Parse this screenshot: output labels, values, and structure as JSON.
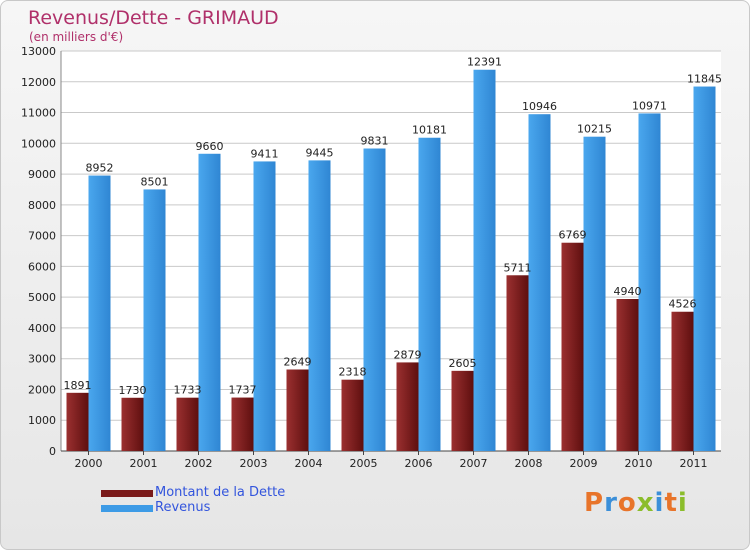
{
  "title": "Revenus/Dette - GRIMAUD",
  "subtitle": "(en milliers d'€)",
  "logo_text": "Proxiti",
  "chart_data": {
    "type": "bar",
    "categories": [
      "2000",
      "2001",
      "2002",
      "2003",
      "2004",
      "2005",
      "2006",
      "2007",
      "2008",
      "2009",
      "2010",
      "2011"
    ],
    "series": [
      {
        "name": "Montant de la Dette",
        "color": "#7a1a1a",
        "values": [
          1891,
          1730,
          1733,
          1737,
          2649,
          2318,
          2879,
          2605,
          5711,
          6769,
          4940,
          4526
        ],
        "labels": [
          "1891",
          "1730",
          "1733",
          "1737",
          "2649",
          "2318",
          "2879",
          "2605",
          "5711",
          "6769",
          "4940",
          "4526"
        ]
      },
      {
        "name": "Revenus",
        "color": "#3d9be6",
        "values": [
          8952,
          8501,
          9660,
          9411,
          9445,
          9831,
          10181,
          12391,
          10946,
          10215,
          10971,
          11845
        ],
        "labels": [
          "8952",
          "8501",
          "9660",
          "9411",
          "9445",
          "9831",
          "10181",
          "12391",
          "10946",
          "10215",
          "10971",
          "11845"
        ]
      }
    ],
    "yticks": [
      0,
      1000,
      2000,
      3000,
      4000,
      5000,
      6000,
      7000,
      8000,
      9000,
      10000,
      11000,
      12000,
      13000
    ],
    "ylim": [
      0,
      13000
    ],
    "grid": true,
    "legend_position": "bottom-left",
    "xlabel": "",
    "ylabel": ""
  }
}
